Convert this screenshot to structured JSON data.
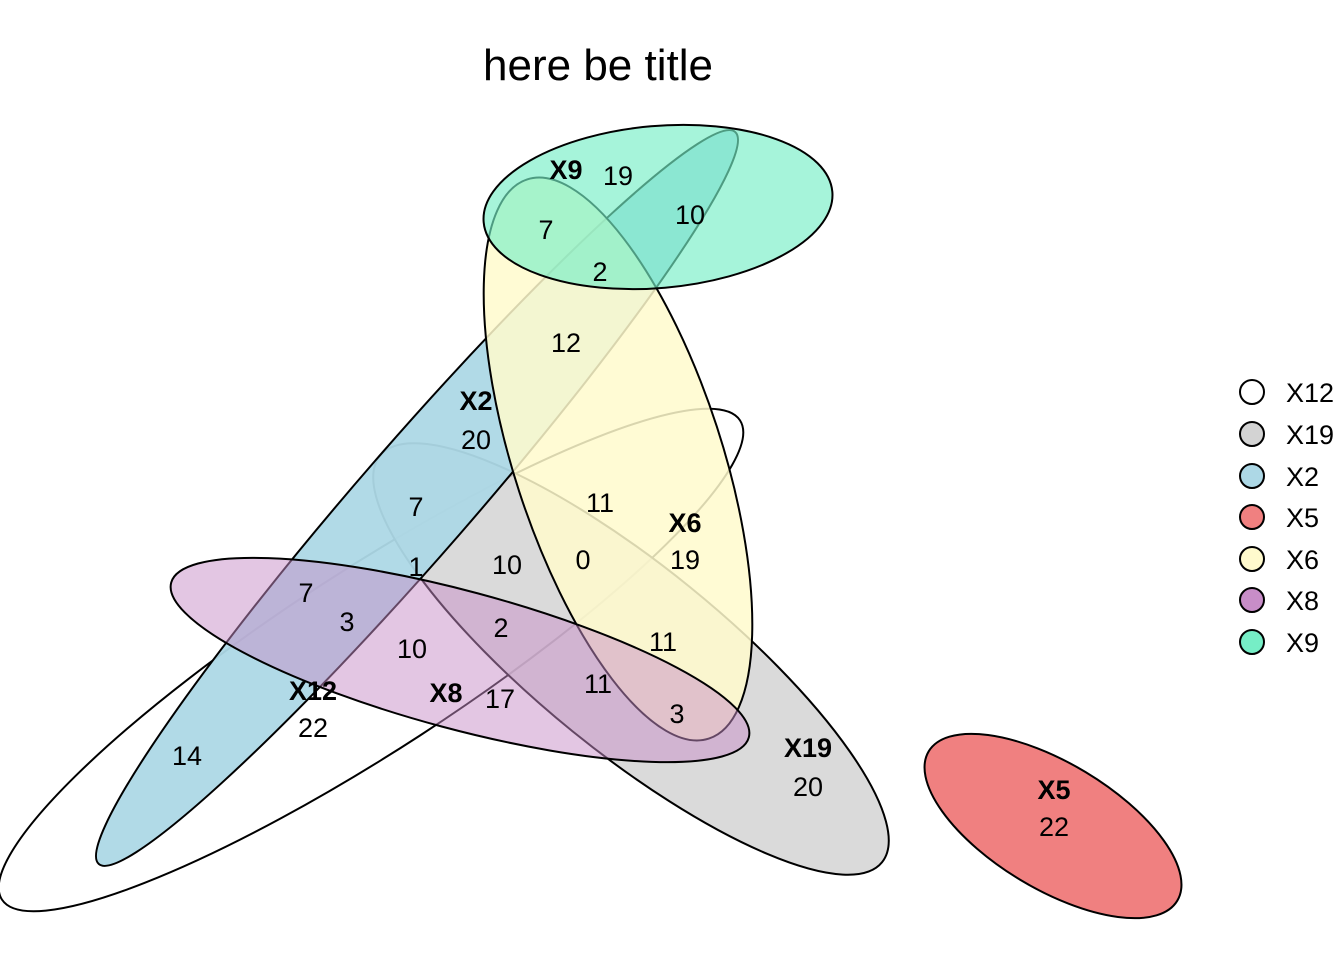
{
  "title": "here be title",
  "sets": [
    {
      "id": "X12",
      "name": "X12",
      "count": "22",
      "color": "#FFFFFF"
    },
    {
      "id": "X19",
      "name": "X19",
      "count": "20",
      "color": "#D3D3D3"
    },
    {
      "id": "X2",
      "name": "X2",
      "count": "20",
      "color": "#ADD8E6"
    },
    {
      "id": "X5",
      "name": "X5",
      "count": "22",
      "color": "#F08080"
    },
    {
      "id": "X6",
      "name": "X6",
      "count": "19",
      "color": "#FFFACD"
    },
    {
      "id": "X8",
      "name": "X8",
      "count": "17",
      "color": "#C88DC8"
    },
    {
      "id": "X9",
      "name": "X9",
      "count": "19",
      "color": "#76EEC6"
    }
  ],
  "intersections": [
    {
      "id": "x9-x2",
      "value": "10"
    },
    {
      "id": "x9-x6",
      "value": "7"
    },
    {
      "id": "x9-x2-x6",
      "value": "2"
    },
    {
      "id": "x2-x6",
      "value": "12"
    },
    {
      "id": "x6-x12",
      "value": "11"
    },
    {
      "id": "x19-x2",
      "value": "7"
    },
    {
      "id": "x19-x2-x12",
      "value": "1"
    },
    {
      "id": "x19-x12",
      "value": "10"
    },
    {
      "id": "x19-x6-x12",
      "value": "0"
    },
    {
      "id": "x8-x2",
      "value": "7"
    },
    {
      "id": "x8-x2-x12",
      "value": "3"
    },
    {
      "id": "x8-x12",
      "value": "10"
    },
    {
      "id": "x8-x19-x12",
      "value": "2"
    },
    {
      "id": "x19-x6",
      "value": "11"
    },
    {
      "id": "x8-x19",
      "value": "11"
    },
    {
      "id": "x8-x19-x6",
      "value": "3"
    },
    {
      "id": "x2-x12",
      "value": "14"
    }
  ],
  "legend": [
    {
      "label": "X12",
      "color": "#FFFFFF"
    },
    {
      "label": "X19",
      "color": "#D3D3D3"
    },
    {
      "label": "X2",
      "color": "#ADD8E6"
    },
    {
      "label": "X5",
      "color": "#F08080"
    },
    {
      "label": "X6",
      "color": "#FFFACD"
    },
    {
      "label": "X8",
      "color": "#C88DC8"
    },
    {
      "label": "X9",
      "color": "#76EEC6"
    }
  ]
}
